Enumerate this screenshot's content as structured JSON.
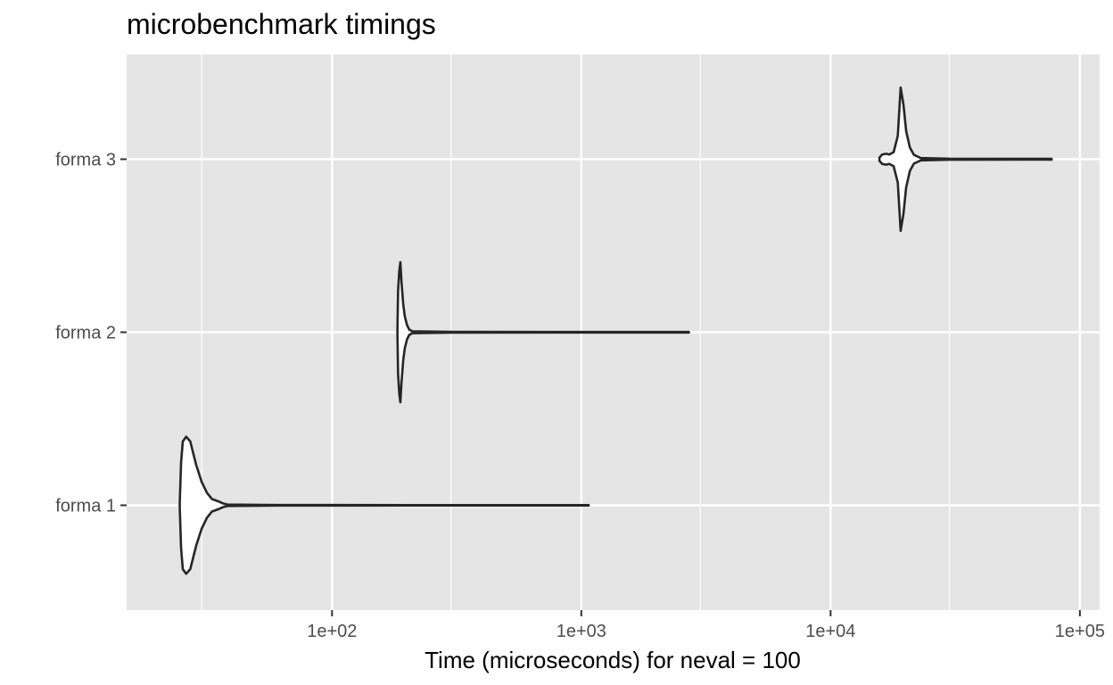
{
  "chart_data": {
    "type": "violin",
    "title": "microbenchmark timings",
    "xlabel": "Time (microseconds) for neval = 100",
    "ylabel": "",
    "x_scale": "log10",
    "xlim": [
      15,
      120000
    ],
    "x_major_ticks": [
      100,
      1000,
      10000,
      100000
    ],
    "x_major_labels": [
      "1e+02",
      "1e+03",
      "1e+04",
      "1e+05"
    ],
    "x_minor_ticks": [
      30,
      300,
      3000,
      30000
    ],
    "categories": [
      "forma 1",
      "forma 2",
      "forma 3"
    ],
    "grid": true,
    "legend": "none",
    "colors": {
      "panel": "#e5e5e5",
      "grid": "#ffffff",
      "violin_fill": "#ffffff",
      "violin_stroke": "#262626",
      "tick_label": "#4d4d4d",
      "tick_mark": "#333333"
    },
    "series": [
      {
        "category": "forma 1",
        "min": 24.5,
        "max": 1070,
        "profile": [
          [
            24.5,
            0.03
          ],
          [
            24.8,
            0.55
          ],
          [
            25.2,
            0.82
          ],
          [
            26,
            0.88
          ],
          [
            27,
            0.82
          ],
          [
            28.5,
            0.52
          ],
          [
            30,
            0.3
          ],
          [
            31.5,
            0.16
          ],
          [
            33,
            0.08
          ],
          [
            35,
            0.05
          ],
          [
            36.5,
            0.025
          ],
          [
            38,
            0.01
          ],
          [
            60,
            0.004
          ],
          [
            200,
            0.003
          ],
          [
            1070,
            0.003
          ]
        ]
      },
      {
        "category": "forma 2",
        "min": 183,
        "max": 2700,
        "profile": [
          [
            183,
            0.03
          ],
          [
            184,
            0.52
          ],
          [
            186,
            0.78
          ],
          [
            188,
            0.9
          ],
          [
            190,
            0.64
          ],
          [
            193,
            0.36
          ],
          [
            196,
            0.2
          ],
          [
            200,
            0.09
          ],
          [
            204,
            0.035
          ],
          [
            210,
            0.012
          ],
          [
            300,
            0.005
          ],
          [
            1000,
            0.004
          ],
          [
            2700,
            0.004
          ]
        ]
      },
      {
        "category": "forma 3",
        "min": 15700,
        "max": 77000,
        "profile": [
          [
            15700,
            0.02
          ],
          [
            16100,
            0.06
          ],
          [
            16700,
            0.07
          ],
          [
            17200,
            0.06
          ],
          [
            17900,
            0.09
          ],
          [
            18600,
            0.3
          ],
          [
            19100,
            0.92
          ],
          [
            19600,
            0.7
          ],
          [
            20100,
            0.36
          ],
          [
            20800,
            0.15
          ],
          [
            21600,
            0.055
          ],
          [
            22500,
            0.03
          ],
          [
            23000,
            0.015
          ],
          [
            30000,
            0.006
          ],
          [
            77000,
            0.005
          ]
        ]
      }
    ]
  }
}
